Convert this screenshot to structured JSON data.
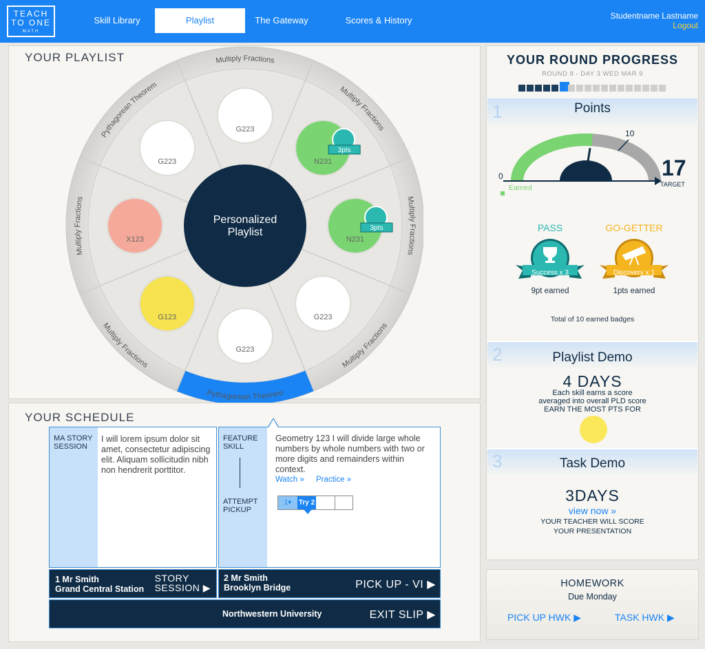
{
  "logo": {
    "line1": "TEACH",
    "line2": "TO ONE",
    "line3": "MATH"
  },
  "nav": {
    "tabs": [
      {
        "label": "Skill Library"
      },
      {
        "label": "Playlist"
      },
      {
        "label": "The Gateway"
      },
      {
        "label": "Scores & History"
      }
    ],
    "user_name": "Studentname Lastname",
    "logout": "Logout"
  },
  "playlist": {
    "title": "YOUR PLAYLIST",
    "center_line1": "Personalized",
    "center_line2": "Playlist",
    "segments": [
      "Multiply Fractions",
      "Multiply Fractions",
      "Multiply Fractions",
      "Multiply Fractions",
      "Pythagorean Theorem",
      "Multiply Fractions",
      "Multiply Fractions",
      "Pythagorean Theorem"
    ],
    "skills": [
      {
        "code": "G223",
        "color": "#ffffff"
      },
      {
        "code": "N231",
        "color": "#79d471",
        "badge": "3pts"
      },
      {
        "code": "N231",
        "color": "#79d471",
        "badge": "3pts"
      },
      {
        "code": "G223",
        "color": "#ffffff"
      },
      {
        "code": "G223",
        "color": "#ffffff"
      },
      {
        "code": "G123",
        "color": "#f6e34f"
      },
      {
        "code": "X123",
        "color": "#f5a99a"
      },
      {
        "code": "G223",
        "color": "#ffffff"
      }
    ]
  },
  "schedule": {
    "title": "YOUR SCHEDULE",
    "left": {
      "side_label": "MA STORY SESSION",
      "text": "I will lorem ipsum dolor sit amet, consectetur adipiscing elit. Aliquam sollicitudin nibh non hendrerit porttitor."
    },
    "right": {
      "side_top": "FEATURE SKILL",
      "side_bottom": "ATTEMPT PICKUP",
      "text": "Geometry 123  I will divide large whole numbers by whole numbers with two or more digits and remainders within context.",
      "watch": "Watch »",
      "practice": "Practice »",
      "attempt1": "1▾",
      "attempt2": "Try 2"
    },
    "bar1": {
      "line1": "1 Mr Smith",
      "line2": "Grand Central Station",
      "action1": "STORY",
      "action2": "SESSION ▶"
    },
    "bar2": {
      "line1": "2 Mr Smith",
      "line2": "Brooklyn Bridge",
      "action": "PICK UP - VI ▶"
    },
    "bar3": {
      "location": "Northwestern University",
      "action": "EXIT SLIP ▶"
    }
  },
  "progress": {
    "title": "YOUR ROUND PROGRESS",
    "subtitle": "ROUND 8 - DAY 3 WED MAR 9",
    "days_total": 18,
    "days_done": 5,
    "current_day": 6,
    "points": {
      "num": "1",
      "title": "Points",
      "gauge_min": "0",
      "gauge_mark": "10",
      "target_value": "17",
      "target_label": "TARGET",
      "earned_label": "Earned",
      "earned": 9,
      "target": 17
    },
    "badges": [
      {
        "heading": "PASS",
        "ribbon": "Success x 3",
        "earned": "9pt earned",
        "color": "#2bb8b0"
      },
      {
        "heading": "GO-GETTER",
        "ribbon": "Discovery x 1",
        "earned": "1pts earned",
        "color": "#f5b51e"
      }
    ],
    "badges_total": "Total of 10 earned badges",
    "playlist_demo": {
      "num": "2",
      "title": "Playlist Demo",
      "days": "4 DAYS",
      "line1": "Each skill earns a score",
      "line2": "averaged into overall PLD score",
      "line3": "EARN THE MOST PTS FOR"
    },
    "task_demo": {
      "num": "3",
      "title": "Task Demo",
      "days": "3DAYS",
      "link": "view now »",
      "line1": "YOUR TEACHER WILL SCORE",
      "line2": "YOUR PRESENTATION"
    }
  },
  "homework": {
    "title": "HOMEWORK",
    "due": "Due Monday",
    "pickup": "PICK UP HWK ▶",
    "task": "TASK HWK ▶"
  },
  "colors": {
    "brand": "#1a84f4",
    "navy": "#0f2b45",
    "accent_yellow": "#f6d33a"
  }
}
